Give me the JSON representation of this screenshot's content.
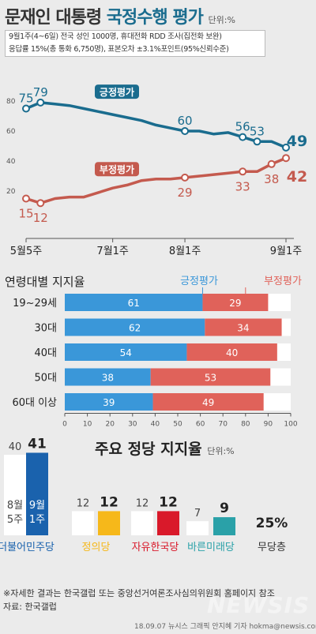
{
  "header": {
    "title_part1": "문재인 대통령 ",
    "title_part2": "국정수행 평가",
    "unit": "단위:%",
    "note_line1": "9월1주(4~6일) 전국 성인 1000명, 휴대전화 RDD 조사(집전화 보완)",
    "note_line2": "응답률 15%(총 통화 6,750명), 표본오차 ±3.1%포인트(95%신뢰수준)"
  },
  "colors": {
    "positive": "#1a6c8e",
    "negative": "#c45a4e",
    "bar_positive": "#3a97d9",
    "bar_negative": "#e0625a"
  },
  "chart_data": [
    {
      "type": "line",
      "x_labels": [
        "5월5주",
        "7월1주",
        "8월1주",
        "9월1주"
      ],
      "y_ticks": [
        "80",
        "60",
        "40",
        "20"
      ],
      "ylim": [
        0,
        90
      ],
      "series": [
        {
          "name": "긍정평가",
          "values": [
            75,
            79,
            78,
            77,
            75,
            73,
            71,
            69,
            67,
            64,
            62,
            60,
            60,
            58,
            59,
            56,
            53,
            53,
            49
          ],
          "labels": [
            {
              "i": 0,
              "text": "75"
            },
            {
              "i": 1,
              "text": "79"
            },
            {
              "i": 11,
              "text": "60"
            },
            {
              "i": 15,
              "text": "56"
            },
            {
              "i": 16,
              "text": "53"
            },
            {
              "i": 18,
              "text": "49"
            }
          ]
        },
        {
          "name": "부정평가",
          "values": [
            15,
            12,
            15,
            16,
            16,
            19,
            22,
            24,
            27,
            28,
            28,
            29,
            30,
            31,
            32,
            33,
            33,
            38,
            42
          ],
          "labels": [
            {
              "i": 0,
              "text": "15"
            },
            {
              "i": 1,
              "text": "12"
            },
            {
              "i": 11,
              "text": "29"
            },
            {
              "i": 15,
              "text": "33"
            },
            {
              "i": 17,
              "text": "38"
            },
            {
              "i": 18,
              "text": "42"
            }
          ]
        }
      ]
    },
    {
      "type": "bar",
      "title": "연령대별 지지율",
      "categories": [
        "19~29세",
        "30대",
        "40대",
        "50대",
        "60대 이상"
      ],
      "series": [
        {
          "name": "긍정평가",
          "values": [
            61,
            62,
            54,
            38,
            39
          ]
        },
        {
          "name": "부정평가",
          "values": [
            29,
            34,
            40,
            53,
            49
          ]
        }
      ],
      "x_ticks": [
        "0",
        "10",
        "20",
        "30",
        "40",
        "50",
        "60",
        "70",
        "80",
        "90",
        "100"
      ],
      "xlim": [
        0,
        100
      ]
    },
    {
      "type": "bar",
      "title": "주요 정당 지지율",
      "unit": "단위:%",
      "categories": [
        "더불어민주당",
        "정의당",
        "자유한국당",
        "바른미래당",
        "무당층"
      ],
      "series": [
        {
          "name": "8월5주",
          "values": [
            40,
            12,
            12,
            7,
            null
          ]
        },
        {
          "name": "9월1주",
          "values": [
            41,
            12,
            12,
            9,
            25
          ]
        }
      ],
      "prev_label": "8월\n5주",
      "curr_label": "9월\n1주",
      "prev_values_text": [
        "40",
        "12",
        "12",
        "7"
      ],
      "curr_values_text": [
        "41",
        "12",
        "12",
        "9",
        "25%"
      ],
      "party_colors": [
        "#1a62ad",
        "#f6b81a",
        "#d9192a",
        "#2aa1a8",
        "#333333"
      ]
    }
  ],
  "footer": {
    "note": "※자세한 결과는 한국갤럽 또는 중앙선거여론조사심의위원회 홈페이지 참조",
    "source": "자료: 한국갤럽",
    "credit": "18.09.07 뉴시스 그래픽 안지혜 기자  hokma@newsis.com",
    "watermark": "NEWSIS"
  }
}
